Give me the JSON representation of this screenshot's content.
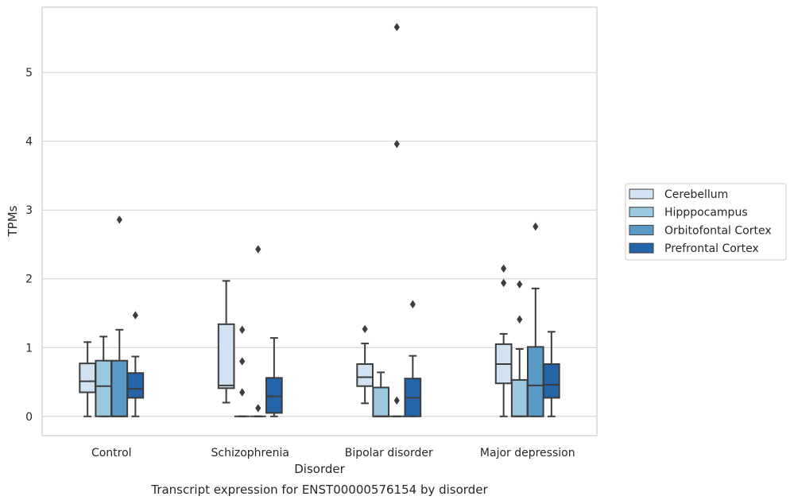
{
  "caption": "Transcript expression for ENST00000576154 by disorder",
  "chart_data": {
    "type": "box",
    "xlabel": "Disorder",
    "ylabel": "TPMs",
    "ylim": [
      -0.28,
      5.95
    ],
    "yticks": [
      0,
      1,
      2,
      3,
      4,
      5
    ],
    "grid": true,
    "legend_position": "right",
    "categories": [
      "Control",
      "Schizophrenia",
      "Bipolar disorder",
      "Major depression"
    ],
    "series": [
      {
        "name": "Cerebellum",
        "color": "#d1e2f2",
        "boxes": [
          {
            "whisker_low": 0.0,
            "q1": 0.35,
            "median": 0.51,
            "q3": 0.77,
            "whisker_high": 1.08,
            "outliers": []
          },
          {
            "whisker_low": 0.2,
            "q1": 0.41,
            "median": 0.45,
            "q3": 1.34,
            "whisker_high": 1.97,
            "outliers": []
          },
          {
            "whisker_low": 0.19,
            "q1": 0.44,
            "median": 0.57,
            "q3": 0.76,
            "whisker_high": 1.06,
            "outliers": [
              1.27
            ]
          },
          {
            "whisker_low": 0.0,
            "q1": 0.48,
            "median": 0.76,
            "q3": 1.05,
            "whisker_high": 1.2,
            "outliers": [
              1.94,
              2.15
            ]
          }
        ]
      },
      {
        "name": "Hipppocampus",
        "color": "#9ac8e0",
        "boxes": [
          {
            "whisker_low": 0.0,
            "q1": 0.0,
            "median": 0.44,
            "q3": 0.81,
            "whisker_high": 1.16,
            "outliers": []
          },
          {
            "whisker_low": 0.0,
            "q1": 0.0,
            "median": 0.0,
            "q3": 0.0,
            "whisker_high": 0.0,
            "outliers": [
              0.35,
              0.8,
              1.26
            ]
          },
          {
            "whisker_low": 0.0,
            "q1": 0.0,
            "median": 0.0,
            "q3": 0.42,
            "whisker_high": 0.64,
            "outliers": []
          },
          {
            "whisker_low": 0.0,
            "q1": 0.0,
            "median": 0.0,
            "q3": 0.53,
            "whisker_high": 0.98,
            "outliers": [
              1.41,
              1.92
            ]
          }
        ]
      },
      {
        "name": "Orbitofontal Cortex",
        "color": "#5a9ac6",
        "boxes": [
          {
            "whisker_low": 0.0,
            "q1": 0.0,
            "median": 0.0,
            "q3": 0.81,
            "whisker_high": 1.26,
            "outliers": [
              2.86
            ]
          },
          {
            "whisker_low": 0.0,
            "q1": 0.0,
            "median": 0.0,
            "q3": 0.0,
            "whisker_high": 0.0,
            "outliers": [
              0.12,
              2.43
            ]
          },
          {
            "whisker_low": 0.0,
            "q1": 0.0,
            "median": 0.0,
            "q3": 0.0,
            "whisker_high": 0.0,
            "outliers": [
              0.23,
              3.96,
              5.66
            ]
          },
          {
            "whisker_low": 0.0,
            "q1": 0.0,
            "median": 0.45,
            "q3": 1.01,
            "whisker_high": 1.86,
            "outliers": [
              2.76
            ]
          }
        ]
      },
      {
        "name": "Prefrontal Cortex",
        "color": "#2464a8",
        "boxes": [
          {
            "whisker_low": 0.0,
            "q1": 0.27,
            "median": 0.4,
            "q3": 0.63,
            "whisker_high": 0.87,
            "outliers": [
              1.47
            ]
          },
          {
            "whisker_low": 0.0,
            "q1": 0.05,
            "median": 0.29,
            "q3": 0.56,
            "whisker_high": 1.14,
            "outliers": []
          },
          {
            "whisker_low": 0.0,
            "q1": 0.0,
            "median": 0.27,
            "q3": 0.55,
            "whisker_high": 0.88,
            "outliers": [
              1.63
            ]
          },
          {
            "whisker_low": 0.0,
            "q1": 0.27,
            "median": 0.46,
            "q3": 0.76,
            "whisker_high": 1.23,
            "outliers": []
          }
        ]
      }
    ]
  }
}
